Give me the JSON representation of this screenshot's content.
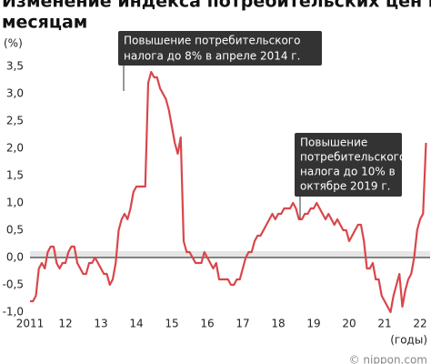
{
  "chart_data": {
    "type": "line",
    "title_lines": [
      "Изменение индекса потребительских цен по",
      "месяцам"
    ],
    "y_label": "(%)",
    "x_label": "(годы)",
    "source": "© nippon.com",
    "annotations": [
      {
        "lines": [
          "Повышение потребительского",
          "налога до 8% в апреле 2014 г."
        ]
      },
      {
        "lines": [
          "Повышение",
          "потребительского",
          "налога до 10% в",
          "октябре 2019 г."
        ]
      }
    ],
    "categories": [
      "2011",
      null,
      null,
      null,
      null,
      null,
      null,
      null,
      null,
      null,
      null,
      null,
      "12",
      null,
      null,
      null,
      null,
      null,
      null,
      null,
      null,
      null,
      null,
      null,
      "13",
      null,
      null,
      null,
      null,
      null,
      null,
      null,
      null,
      null,
      null,
      null,
      "14",
      null,
      null,
      null,
      null,
      null,
      null,
      null,
      null,
      null,
      null,
      null,
      "15",
      null,
      null,
      null,
      null,
      null,
      null,
      null,
      null,
      null,
      null,
      null,
      "16",
      null,
      null,
      null,
      null,
      null,
      null,
      null,
      null,
      null,
      null,
      null,
      "17",
      null,
      null,
      null,
      null,
      null,
      null,
      null,
      null,
      null,
      null,
      null,
      "18",
      null,
      null,
      null,
      null,
      null,
      null,
      null,
      null,
      null,
      null,
      null,
      "19",
      null,
      null,
      null,
      null,
      null,
      null,
      null,
      null,
      null,
      null,
      null,
      "20",
      null,
      null,
      null,
      null,
      null,
      null,
      null,
      null,
      null,
      null,
      null,
      "21",
      null,
      null,
      null,
      null,
      null,
      null,
      null,
      null,
      null,
      null,
      null,
      "22",
      null,
      null
    ],
    "series": [
      {
        "color": "#d9464a",
        "values": [
          -0.8,
          -0.8,
          -0.7,
          -0.2,
          -0.1,
          -0.2,
          0.1,
          0.2,
          0.2,
          -0.1,
          -0.2,
          -0.1,
          -0.1,
          0.1,
          0.2,
          0.2,
          -0.1,
          -0.2,
          -0.3,
          -0.3,
          -0.1,
          -0.1,
          0.0,
          -0.1,
          -0.2,
          -0.3,
          -0.3,
          -0.5,
          -0.4,
          -0.1,
          0.5,
          0.7,
          0.8,
          0.7,
          0.9,
          1.2,
          1.3,
          1.3,
          1.3,
          1.3,
          3.2,
          3.4,
          3.3,
          3.3,
          3.1,
          3.0,
          2.9,
          2.7,
          2.4,
          2.1,
          1.9,
          2.2,
          0.3,
          0.1,
          0.1,
          0.0,
          -0.1,
          -0.1,
          -0.1,
          0.1,
          0.0,
          -0.1,
          -0.2,
          -0.1,
          -0.4,
          -0.4,
          -0.4,
          -0.4,
          -0.5,
          -0.5,
          -0.4,
          -0.4,
          -0.2,
          0.0,
          0.1,
          0.1,
          0.3,
          0.4,
          0.4,
          0.5,
          0.6,
          0.7,
          0.8,
          0.7,
          0.8,
          0.8,
          0.9,
          0.9,
          0.9,
          1.0,
          0.9,
          0.7,
          0.7,
          0.8,
          0.8,
          0.9,
          0.9,
          1.0,
          0.9,
          0.8,
          0.7,
          0.8,
          0.7,
          0.6,
          0.7,
          0.6,
          0.5,
          0.5,
          0.3,
          0.4,
          0.5,
          0.6,
          0.6,
          0.3,
          -0.2,
          -0.2,
          -0.1,
          -0.4,
          -0.4,
          -0.7,
          -0.8,
          -0.9,
          -1.0,
          -0.7,
          -0.5,
          -0.3,
          -0.9,
          -0.6,
          -0.4,
          -0.3,
          0.0,
          0.5,
          0.7,
          0.8,
          2.1
        ]
      }
    ],
    "ylim": [
      -1.0,
      3.5
    ],
    "yticks": [
      {
        "value": 3.5,
        "label": "3,5"
      },
      {
        "value": 3.0,
        "label": "3,0"
      },
      {
        "value": 2.5,
        "label": "2,5"
      },
      {
        "value": 2.0,
        "label": "2,0"
      },
      {
        "value": 1.5,
        "label": "1,5"
      },
      {
        "value": 1.0,
        "label": "1,0"
      },
      {
        "value": 0.5,
        "label": "0,5"
      },
      {
        "value": 0.0,
        "label": "0,0"
      },
      {
        "value": -0.5,
        "label": "-0,5"
      },
      {
        "value": -1.0,
        "label": "-1,0"
      }
    ],
    "grid": false
  }
}
